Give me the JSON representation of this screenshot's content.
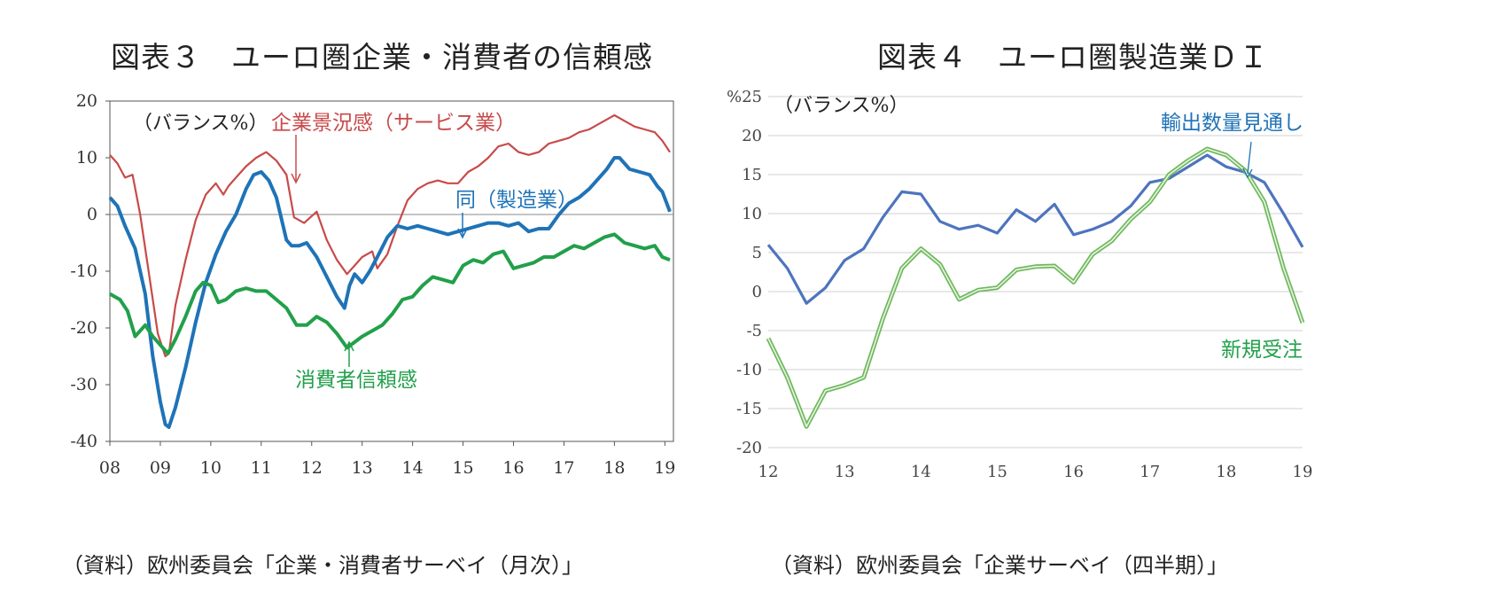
{
  "charts": [
    {
      "title": "図表３　ユーロ圏企業・消費者の信頼感",
      "source": "（資料）欧州委員会「企業・消費者サーベイ（月次）」",
      "chart_data": {
        "type": "line",
        "unit_label": "（バランス%）",
        "ylim": [
          -40,
          20
        ],
        "yticks": [
          -40,
          -30,
          -20,
          -10,
          0,
          10,
          20
        ],
        "xlim": [
          2008,
          2019.17
        ],
        "xtick_labels": [
          "08",
          "09",
          "10",
          "11",
          "12",
          "13",
          "14",
          "15",
          "16",
          "17",
          "18",
          "19"
        ],
        "grid": false,
        "zero_line": true,
        "series": [
          {
            "name": "企業景況感（サービス業）",
            "color": "#c84a4a",
            "x": [
              2008.0,
              2008.15,
              2008.3,
              2008.45,
              2008.6,
              2008.8,
              2008.95,
              2009.1,
              2009.17,
              2009.3,
              2009.5,
              2009.7,
              2009.9,
              2010.1,
              2010.25,
              2010.35,
              2010.5,
              2010.7,
              2010.9,
              2011.1,
              2011.3,
              2011.5,
              2011.65,
              2011.85,
              2012.1,
              2012.3,
              2012.5,
              2012.7,
              2012.85,
              2013.0,
              2013.2,
              2013.3,
              2013.5,
              2013.7,
              2013.9,
              2014.1,
              2014.3,
              2014.5,
              2014.7,
              2014.9,
              2015.1,
              2015.3,
              2015.5,
              2015.7,
              2015.9,
              2016.1,
              2016.3,
              2016.5,
              2016.7,
              2016.9,
              2017.1,
              2017.3,
              2017.5,
              2017.7,
              2017.9,
              2018.0,
              2018.2,
              2018.4,
              2018.6,
              2018.8,
              2018.95,
              2019.1
            ],
            "values": [
              10.5,
              9.0,
              6.5,
              7.0,
              0.0,
              -12.0,
              -21.0,
              -25.0,
              -24.5,
              -16.0,
              -8.0,
              -1.0,
              3.5,
              5.5,
              3.5,
              5.0,
              6.5,
              8.5,
              10.0,
              11.0,
              9.5,
              7.0,
              -0.5,
              -1.5,
              0.5,
              -4.5,
              -8.0,
              -10.5,
              -9.0,
              -7.5,
              -6.5,
              -9.5,
              -7.0,
              -2.0,
              2.5,
              4.5,
              5.5,
              6.0,
              5.5,
              5.5,
              7.5,
              8.5,
              10.0,
              12.0,
              12.5,
              11.0,
              10.5,
              11.0,
              12.5,
              13.0,
              13.5,
              14.5,
              15.0,
              16.0,
              17.0,
              17.5,
              16.5,
              15.5,
              15.0,
              14.5,
              13.0,
              11.0
            ]
          },
          {
            "name": "同（製造業）",
            "color": "#1f73b7",
            "x": [
              2008.0,
              2008.15,
              2008.3,
              2008.5,
              2008.7,
              2008.85,
              2009.0,
              2009.1,
              2009.17,
              2009.3,
              2009.5,
              2009.7,
              2009.9,
              2010.1,
              2010.3,
              2010.5,
              2010.7,
              2010.85,
              2011.0,
              2011.15,
              2011.3,
              2011.5,
              2011.6,
              2011.75,
              2011.9,
              2012.1,
              2012.3,
              2012.5,
              2012.65,
              2012.75,
              2012.85,
              2013.0,
              2013.15,
              2013.3,
              2013.5,
              2013.7,
              2013.9,
              2014.1,
              2014.3,
              2014.5,
              2014.7,
              2014.9,
              2015.1,
              2015.3,
              2015.5,
              2015.7,
              2015.9,
              2016.1,
              2016.3,
              2016.5,
              2016.7,
              2016.9,
              2017.1,
              2017.3,
              2017.5,
              2017.7,
              2017.85,
              2018.0,
              2018.1,
              2018.3,
              2018.5,
              2018.7,
              2018.85,
              2018.95,
              2019.1
            ],
            "values": [
              3.0,
              1.5,
              -2.0,
              -6.0,
              -14.0,
              -25.0,
              -33.0,
              -37.0,
              -37.5,
              -34.0,
              -27.0,
              -19.0,
              -12.0,
              -7.0,
              -3.0,
              0.0,
              4.5,
              7.0,
              7.5,
              6.0,
              3.0,
              -4.5,
              -5.5,
              -5.5,
              -5.0,
              -7.5,
              -11.0,
              -14.5,
              -16.5,
              -12.5,
              -10.5,
              -12.0,
              -10.0,
              -7.5,
              -4.0,
              -2.0,
              -2.5,
              -2.0,
              -2.5,
              -3.0,
              -3.5,
              -3.0,
              -2.5,
              -2.0,
              -1.5,
              -1.5,
              -2.0,
              -1.5,
              -3.0,
              -2.5,
              -2.5,
              0.0,
              2.0,
              3.0,
              4.5,
              6.5,
              8.0,
              10.0,
              10.0,
              8.0,
              7.5,
              7.0,
              5.0,
              4.0,
              0.5
            ]
          },
          {
            "name": "消費者信頼感",
            "color": "#21a04a",
            "x": [
              2008.0,
              2008.2,
              2008.35,
              2008.5,
              2008.7,
              2008.85,
              2009.0,
              2009.15,
              2009.3,
              2009.5,
              2009.7,
              2009.85,
              2010.0,
              2010.15,
              2010.3,
              2010.5,
              2010.7,
              2010.9,
              2011.1,
              2011.3,
              2011.5,
              2011.7,
              2011.9,
              2012.1,
              2012.3,
              2012.5,
              2012.7,
              2012.85,
              2013.0,
              2013.2,
              2013.4,
              2013.6,
              2013.8,
              2014.0,
              2014.2,
              2014.4,
              2014.6,
              2014.8,
              2015.0,
              2015.2,
              2015.4,
              2015.6,
              2015.8,
              2016.0,
              2016.2,
              2016.4,
              2016.6,
              2016.8,
              2017.0,
              2017.2,
              2017.4,
              2017.6,
              2017.8,
              2018.0,
              2018.2,
              2018.4,
              2018.6,
              2018.8,
              2018.95,
              2019.1
            ],
            "values": [
              -14.0,
              -15.0,
              -17.0,
              -21.5,
              -19.5,
              -21.5,
              -23.0,
              -24.5,
              -22.0,
              -18.0,
              -13.5,
              -12.0,
              -12.5,
              -15.5,
              -15.0,
              -13.5,
              -13.0,
              -13.5,
              -13.5,
              -15.0,
              -16.5,
              -19.5,
              -19.5,
              -18.0,
              -19.0,
              -21.0,
              -23.5,
              -22.5,
              -21.5,
              -20.5,
              -19.5,
              -17.5,
              -15.0,
              -14.5,
              -12.5,
              -11.0,
              -11.5,
              -12.0,
              -9.0,
              -8.0,
              -8.5,
              -7.0,
              -6.5,
              -9.5,
              -9.0,
              -8.5,
              -7.5,
              -7.5,
              -6.5,
              -5.5,
              -6.0,
              -5.0,
              -4.0,
              -3.5,
              -5.0,
              -5.5,
              -6.0,
              -5.5,
              -7.5,
              -8.0
            ]
          }
        ],
        "annotations": [
          {
            "text": "企業景況感（サービス業）",
            "color": "#c84a4a"
          },
          {
            "text": "同（製造業）",
            "color": "#1f73b7"
          },
          {
            "text": "消費者信頼感",
            "color": "#21a04a"
          }
        ]
      }
    },
    {
      "title": "図表４　ユーロ圏製造業ＤＩ",
      "source": "（資料）欧州委員会「企業サーベイ（四半期）」",
      "chart_data": {
        "type": "line",
        "unit_label": "（バランス%）",
        "ylim": [
          -20,
          25
        ],
        "yticks": [
          -20,
          -15,
          -10,
          -5,
          0,
          5,
          10,
          15,
          20,
          25
        ],
        "ytick_labels": [
          "-20",
          "-15",
          "-10",
          "-5",
          "0",
          "5",
          "10",
          "15",
          "20",
          "%25"
        ],
        "xlim": [
          2012.0,
          2019.0
        ],
        "xtick_labels": [
          "12",
          "13",
          "14",
          "15",
          "16",
          "17",
          "18",
          "19"
        ],
        "grid": true,
        "series": [
          {
            "name": "輸出数量見通し",
            "color": "#4e74be",
            "style": "solid",
            "x": [
              2012.0,
              2012.25,
              2012.5,
              2012.75,
              2013.0,
              2013.25,
              2013.5,
              2013.75,
              2014.0,
              2014.25,
              2014.5,
              2014.75,
              2015.0,
              2015.25,
              2015.5,
              2015.75,
              2016.0,
              2016.25,
              2016.5,
              2016.75,
              2017.0,
              2017.25,
              2017.5,
              2017.75,
              2018.0,
              2018.25,
              2018.5,
              2018.75,
              2019.0
            ],
            "values": [
              6.0,
              3.0,
              -1.5,
              0.5,
              4.0,
              5.5,
              9.5,
              12.8,
              12.5,
              9.0,
              8.0,
              8.5,
              7.5,
              10.5,
              9.0,
              11.2,
              7.3,
              8.0,
              9.0,
              11.0,
              14.0,
              14.5,
              16.0,
              17.5,
              16.0,
              15.3,
              14.0,
              10.0,
              5.7
            ]
          },
          {
            "name": "新規受注",
            "color": "#6fb85e",
            "style": "double",
            "x": [
              2012.0,
              2012.25,
              2012.5,
              2012.75,
              2013.0,
              2013.25,
              2013.5,
              2013.75,
              2014.0,
              2014.25,
              2014.5,
              2014.75,
              2015.0,
              2015.25,
              2015.5,
              2015.75,
              2016.0,
              2016.25,
              2016.5,
              2016.75,
              2017.0,
              2017.25,
              2017.5,
              2017.75,
              2018.0,
              2018.25,
              2018.5,
              2018.75,
              2019.0
            ],
            "values": [
              -6.0,
              -11.0,
              -17.3,
              -12.7,
              -12.0,
              -11.0,
              -3.5,
              3.0,
              5.5,
              3.5,
              -1.0,
              0.2,
              0.5,
              2.8,
              3.2,
              3.3,
              1.2,
              4.8,
              6.5,
              9.3,
              11.5,
              15.0,
              16.8,
              18.3,
              17.5,
              15.5,
              11.5,
              3.0,
              -4.0
            ]
          }
        ],
        "annotations": [
          {
            "text": "輸出数量見通し",
            "color": "#1f73b7"
          },
          {
            "text": "新規受注",
            "color": "#21a04a"
          }
        ]
      }
    }
  ]
}
